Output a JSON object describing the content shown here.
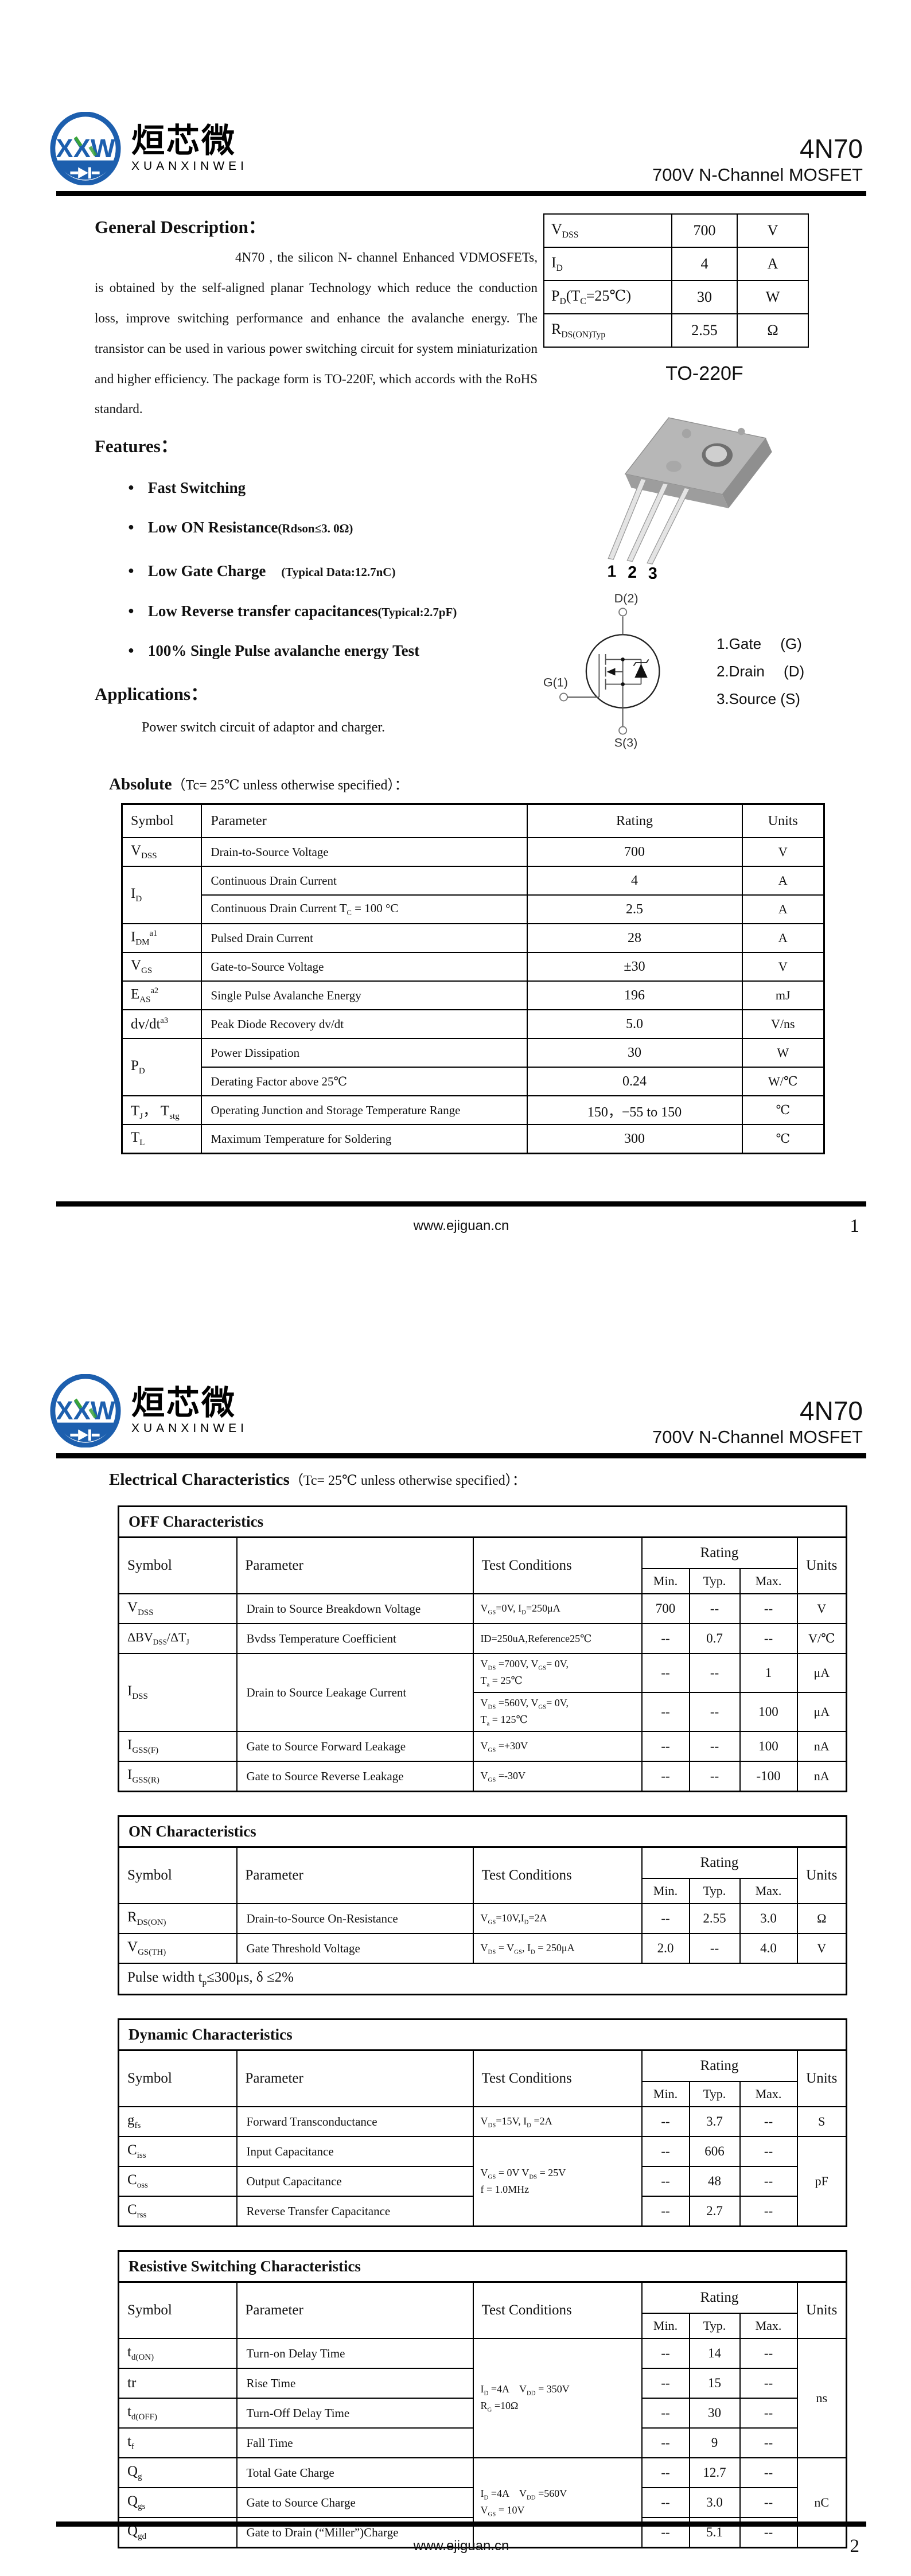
{
  "brand": {
    "monogram": "XXW",
    "name_cn": "烜芯微",
    "name_en": "XUANXINWEI"
  },
  "header": {
    "part_number": "4N70",
    "subtitle": "700V N-Channel MOSFET"
  },
  "page1": {
    "general_heading": "General Description：",
    "description": "4N70  , the silicon N- channel  Enhanced VDMOSFETs, is obtained by the self-aligned planar Technology which reduce the conduction loss, improve switching performance and enhance the avalanche energy. The transistor can be used in various power switching circuit for system miniaturization and higher efficiency. The package form is TO-220F, which accords with the RoHS standard.",
    "quick_specs": {
      "rows": [
        {
          "param": [
            {
              "t": "V"
            },
            {
              "t": "DSS",
              "sub": true
            }
          ],
          "value": "700",
          "unit": "V"
        },
        {
          "param": [
            {
              "t": "I"
            },
            {
              "t": "D",
              "sub": true
            }
          ],
          "value": "4",
          "unit": "A"
        },
        {
          "param": [
            {
              "t": "P"
            },
            {
              "t": "D",
              "sub": true
            },
            {
              "t": "(T"
            },
            {
              "t": "C",
              "sub": true
            },
            {
              "t": "=25℃)"
            }
          ],
          "value": "30",
          "unit": "W"
        },
        {
          "param": [
            {
              "t": "R"
            },
            {
              "t": "DS(ON)Typ",
              "sub": true
            }
          ],
          "value": "2.55",
          "unit": "Ω"
        }
      ]
    },
    "package_label": "TO-220F",
    "package_pins": [
      "1",
      "2",
      "3"
    ],
    "symbol": {
      "drain": "D(2)",
      "gate": "G(1)",
      "source": "S(3)",
      "pin_list": [
        "1.Gate　 (G)",
        "2.Drain　 (D)",
        "3.Source (S)"
      ]
    },
    "features_heading": "Features：",
    "features": [
      {
        "main": "Fast Switching",
        "note": ""
      },
      {
        "main": "Low ON Resistance",
        "note": "(Rdson≤3. 0Ω)"
      },
      {
        "main": "Low Gate Charge",
        "note": "(Typical Data:12.7nC)"
      },
      {
        "main": "Low Reverse transfer capacitances",
        "note": "(Typical:2.7pF)"
      },
      {
        "main": "100% Single Pulse avalanche energy Test",
        "note": ""
      }
    ],
    "applications_heading": "Applications：",
    "applications_text": "Power switch circuit of adaptor and charger.",
    "absolute_heading": {
      "bold": "Absolute",
      "rest": "（Tc= 25℃  unless otherwise specified）："
    },
    "abs_table": {
      "headers": {
        "symbol": "Symbol",
        "parameter": "Parameter",
        "rating": "Rating",
        "units": "Units"
      },
      "rows": {
        "vdss": {
          "sym": [
            {
              "t": "V"
            },
            {
              "t": "DSS",
              "sub": true
            }
          ],
          "param": "Drain-to-Source Voltage",
          "rating": "700",
          "units": "V"
        },
        "id": {
          "sym": [
            {
              "t": "I"
            },
            {
              "t": "D",
              "sub": true
            }
          ],
          "param1": "Continuous Drain Current",
          "rating1": "4",
          "units1": "A",
          "param2": [
            {
              "t": "Continuous Drain Current T"
            },
            {
              "t": "C",
              "sub": true
            },
            {
              "t": " = 100 °C"
            }
          ],
          "rating2": "2.5",
          "units2": "A"
        },
        "idm": {
          "sym": [
            {
              "t": "I"
            },
            {
              "t": "DM",
              "sub": true
            },
            {
              "t": "a1",
              "sup": true
            }
          ],
          "param": "Pulsed Drain Current",
          "rating": "28",
          "units": "A"
        },
        "vgs": {
          "sym": [
            {
              "t": "V"
            },
            {
              "t": "GS",
              "sub": true
            }
          ],
          "param": "Gate-to-Source Voltage",
          "rating": "±30",
          "units": "V"
        },
        "eas": {
          "sym": [
            {
              "t": "E"
            },
            {
              "t": "AS",
              "sub": true
            },
            {
              "t": "a2",
              "sup": true
            }
          ],
          "param": "Single Pulse Avalanche Energy",
          "rating": "196",
          "units": "mJ"
        },
        "dvdt": {
          "sym": [
            {
              "t": "dv/dt"
            },
            {
              "t": "a3",
              "sup": true
            }
          ],
          "param": "Peak Diode Recovery dv/dt",
          "rating": "5.0",
          "units": "V/ns"
        },
        "pd": {
          "sym": [
            {
              "t": "P"
            },
            {
              "t": "D",
              "sub": true
            }
          ],
          "param1": "Power Dissipation",
          "rating1": "30",
          "units1": "W",
          "param2": "Derating Factor above 25℃",
          "rating2": "0.24",
          "units2": "W/℃"
        },
        "tj": {
          "sym": [
            {
              "t": "T"
            },
            {
              "t": "J",
              "sub": true
            },
            {
              "t": "，  T"
            },
            {
              "t": "stg",
              "sub": true
            }
          ],
          "param": "Operating Junction and Storage Temperature Range",
          "rating": "150，−55 to 150",
          "units": "℃"
        },
        "tl": {
          "sym": [
            {
              "t": "T"
            },
            {
              "t": "L",
              "sub": true
            }
          ],
          "param": "Maximum Temperature for Soldering",
          "rating": "300",
          "units": "℃"
        }
      }
    },
    "footer": {
      "site": "www.ejiguan.cn",
      "page": "1"
    }
  },
  "page2": {
    "elec_heading": {
      "bold": "Electrical Characteristics",
      "rest": "（Tc= 25℃  unless otherwise specified）："
    },
    "table_head": {
      "symbol": "Symbol",
      "parameter": "Parameter",
      "conditions": "Test Conditions",
      "rating": "Rating",
      "min": "Min.",
      "typ": "Typ.",
      "max": "Max.",
      "units": "Units"
    },
    "off": {
      "title": "OFF Characteristics",
      "rows": {
        "vdss": {
          "sym": [
            {
              "t": "V"
            },
            {
              "t": "DSS",
              "sub": true
            }
          ],
          "param": "Drain to Source Breakdown Voltage",
          "cond": [
            {
              "t": "V"
            },
            {
              "t": "GS",
              "sub": true
            },
            {
              "t": "=0V, I"
            },
            {
              "t": "D",
              "sub": true
            },
            {
              "t": "=250μA"
            }
          ],
          "min": "700",
          "typ": "--",
          "max": "--",
          "units": "V"
        },
        "bv": {
          "sym": [
            {
              "t": "ΔBV"
            },
            {
              "t": "DSS",
              "sub": true
            },
            {
              "t": "/ΔT"
            },
            {
              "t": "J",
              "sub": true
            }
          ],
          "param": "Bvdss Temperature Coefficient",
          "cond": [
            {
              "t": "ID=250uA,Reference25℃"
            }
          ],
          "min": "--",
          "typ": "0.7",
          "max": "--",
          "units": "V/℃"
        },
        "idss": {
          "sym": [
            {
              "t": "I"
            },
            {
              "t": "DSS",
              "sub": true
            }
          ],
          "param": "Drain to Source Leakage Current",
          "cond1": [
            {
              "t": "V"
            },
            {
              "t": "DS",
              "sub": true
            },
            {
              "t": " =700V, V"
            },
            {
              "t": "GS",
              "sub": true
            },
            {
              "t": "= 0V,"
            },
            {
              "br": true
            },
            {
              "t": "T"
            },
            {
              "t": "a",
              "sub": true
            },
            {
              "t": " = 25℃"
            }
          ],
          "min1": "--",
          "typ1": "--",
          "max1": "1",
          "units1": "μA",
          "cond2": [
            {
              "t": "V"
            },
            {
              "t": "DS",
              "sub": true
            },
            {
              "t": " =560V, V"
            },
            {
              "t": "GS",
              "sub": true
            },
            {
              "t": "= 0V,"
            },
            {
              "br": true
            },
            {
              "t": "T"
            },
            {
              "t": "a",
              "sub": true
            },
            {
              "t": " = 125℃"
            }
          ],
          "min2": "--",
          "typ2": "--",
          "max2": "100",
          "units2": "μA"
        },
        "igssf": {
          "sym": [
            {
              "t": "I"
            },
            {
              "t": "GSS(F)",
              "sub": true
            }
          ],
          "param": "Gate to Source Forward Leakage",
          "cond": [
            {
              "t": "V"
            },
            {
              "t": "GS",
              "sub": true
            },
            {
              "t": " =+30V"
            }
          ],
          "min": "--",
          "typ": "--",
          "max": "100",
          "units": "nA"
        },
        "igssr": {
          "sym": [
            {
              "t": "I"
            },
            {
              "t": "GSS(R)",
              "sub": true
            }
          ],
          "param": "Gate to Source Reverse Leakage",
          "cond": [
            {
              "t": "V"
            },
            {
              "t": "GS",
              "sub": true
            },
            {
              "t": " =-30V"
            }
          ],
          "min": "--",
          "typ": "--",
          "max": "-100",
          "units": "nA"
        }
      }
    },
    "on": {
      "title": "ON Characteristics",
      "rows": {
        "rdson": {
          "sym": [
            {
              "t": "R"
            },
            {
              "t": "DS(ON)",
              "sub": true
            }
          ],
          "param": "Drain-to-Source On-Resistance",
          "cond": [
            {
              "t": "V"
            },
            {
              "t": "GS",
              "sub": true
            },
            {
              "t": "=10V,I"
            },
            {
              "t": "D",
              "sub": true
            },
            {
              "t": "=2A"
            }
          ],
          "min": "--",
          "typ": "2.55",
          "max": "3.0",
          "units": "Ω"
        },
        "vgsth": {
          "sym": [
            {
              "t": "V"
            },
            {
              "t": "GS(TH)",
              "sub": true
            }
          ],
          "param": "Gate Threshold Voltage",
          "cond": [
            {
              "t": "V"
            },
            {
              "t": "DS",
              "sub": true
            },
            {
              "t": " = V"
            },
            {
              "t": "GS",
              "sub": true
            },
            {
              "t": ", I"
            },
            {
              "t": "D",
              "sub": true
            },
            {
              "t": " = 250μA"
            }
          ],
          "min": "2.0",
          "typ": "--",
          "max": "4.0",
          "units": "V"
        }
      },
      "note": [
        {
          "t": "Pulse width t"
        },
        {
          "t": "p",
          "sub": true
        },
        {
          "t": "≤300μs, δ ≤2%"
        }
      ]
    },
    "dyn": {
      "title": "Dynamic Characteristics",
      "rows": {
        "gfs": {
          "sym": [
            {
              "t": "g"
            },
            {
              "t": "fs",
              "sub": true
            }
          ],
          "param": "Forward Transconductance",
          "cond": [
            {
              "t": "V"
            },
            {
              "t": "DS",
              "sub": true
            },
            {
              "t": "=15V, I"
            },
            {
              "t": "D",
              "sub": true
            },
            {
              "t": " =2A"
            }
          ],
          "min": "--",
          "typ": "3.7",
          "max": "--",
          "units": "S"
        },
        "ciss": {
          "sym": [
            {
              "t": "C"
            },
            {
              "t": "iss",
              "sub": true
            }
          ],
          "param": "Input Capacitance",
          "cond": [
            {
              "t": "V"
            },
            {
              "t": "GS",
              "sub": true
            },
            {
              "t": " = 0V V"
            },
            {
              "t": "DS",
              "sub": true
            },
            {
              "t": " = 25V"
            },
            {
              "br": true
            },
            {
              "t": "f = 1.0MHz"
            }
          ],
          "min": "--",
          "typ": "606",
          "max": "--",
          "units": "pF"
        },
        "coss": {
          "sym": [
            {
              "t": "C"
            },
            {
              "t": "oss",
              "sub": true
            }
          ],
          "param": "Output Capacitance",
          "min": "--",
          "typ": "48",
          "max": "--"
        },
        "crss": {
          "sym": [
            {
              "t": "C"
            },
            {
              "t": "rss",
              "sub": true
            }
          ],
          "param": "Reverse Transfer Capacitance",
          "min": "--",
          "typ": "2.7",
          "max": "--"
        }
      }
    },
    "rsw": {
      "title": "Resistive Switching Characteristics",
      "rows": {
        "tdon": {
          "sym": [
            {
              "t": "t"
            },
            {
              "t": "d(ON)",
              "sub": true
            }
          ],
          "param": "Turn-on Delay Time",
          "cond": [
            {
              "t": "I"
            },
            {
              "t": "D",
              "sub": true
            },
            {
              "t": " =4A　V"
            },
            {
              "t": "DD",
              "sub": true
            },
            {
              "t": " = 350V"
            },
            {
              "br": true
            },
            {
              "t": "R"
            },
            {
              "t": "G",
              "sub": true
            },
            {
              "t": " =10Ω"
            }
          ],
          "min": "--",
          "typ": "14",
          "max": "--",
          "units": "ns"
        },
        "tr": {
          "sym": [
            {
              "t": "tr"
            }
          ],
          "param": "Rise Time",
          "min": "--",
          "typ": "15",
          "max": "--"
        },
        "tdoff": {
          "sym": [
            {
              "t": "t"
            },
            {
              "t": "d(OFF)",
              "sub": true
            }
          ],
          "param": "Turn-Off Delay Time",
          "min": "--",
          "typ": "30",
          "max": "--"
        },
        "tf": {
          "sym": [
            {
              "t": "t"
            },
            {
              "t": "f",
              "sub": true
            }
          ],
          "param": "Fall Time",
          "min": "--",
          "typ": "9",
          "max": "--"
        },
        "qg": {
          "sym": [
            {
              "t": "Q"
            },
            {
              "t": "g",
              "sub": true
            }
          ],
          "param": "Total Gate Charge",
          "cond": [
            {
              "t": "I"
            },
            {
              "t": "D",
              "sub": true
            },
            {
              "t": " =4A　V"
            },
            {
              "t": "DD",
              "sub": true
            },
            {
              "t": " =560V"
            },
            {
              "br": true
            },
            {
              "t": "V"
            },
            {
              "t": "GS",
              "sub": true
            },
            {
              "t": " = 10V"
            }
          ],
          "min": "--",
          "typ": "12.7",
          "max": "--",
          "units": "nC"
        },
        "qgs": {
          "sym": [
            {
              "t": "Q"
            },
            {
              "t": "gs",
              "sub": true
            }
          ],
          "param": "Gate to Source Charge",
          "min": "--",
          "typ": "3.0",
          "max": "--"
        },
        "qgd": {
          "sym": [
            {
              "t": "Q"
            },
            {
              "t": "gd",
              "sub": true
            }
          ],
          "param": "Gate to Drain (“Miller”)Charge",
          "min": "--",
          "typ": "5.1",
          "max": "--"
        }
      }
    },
    "footer": {
      "site": "www.ejiguan.cn",
      "page": "2"
    }
  }
}
